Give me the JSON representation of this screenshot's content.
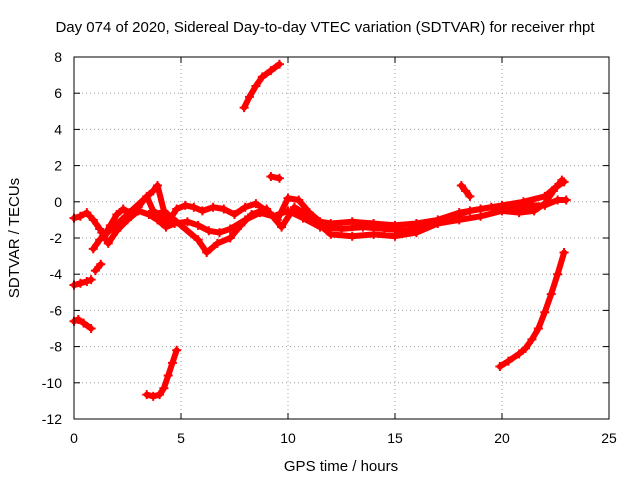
{
  "chart_data": {
    "type": "scatter",
    "title": "Day 074 of 2020, Sidereal Day-to-day VTEC variation (SDTVAR) for receiver rhpt",
    "xlabel": "GPS time / hours",
    "ylabel": "SDTVAR / TECUs",
    "xlim": [
      0,
      25
    ],
    "ylim": [
      -12,
      8
    ],
    "xticks": [
      "0",
      "5",
      "10",
      "15",
      "20",
      "25"
    ],
    "yticks": [
      "-12",
      "-10",
      "-8",
      "-6",
      "-4",
      "-2",
      "0",
      "2",
      "4",
      "6",
      "8"
    ],
    "grid": true,
    "marker": "plus",
    "color": "#ff0000",
    "series": [
      {
        "name": "trace-main-a",
        "points": [
          [
            0,
            -0.9
          ],
          [
            0.3,
            -0.8
          ],
          [
            0.6,
            -0.6
          ],
          [
            0.9,
            -1.0
          ],
          [
            1.2,
            -1.5
          ],
          [
            1.4,
            -1.9
          ],
          [
            1.7,
            -1.3
          ],
          [
            2.0,
            -0.7
          ],
          [
            2.3,
            -0.4
          ],
          [
            2.6,
            -0.6
          ],
          [
            3.0,
            -0.3
          ],
          [
            3.4,
            0.3
          ],
          [
            3.7,
            -0.5
          ],
          [
            4.0,
            -0.7
          ],
          [
            4.4,
            -1.1
          ],
          [
            4.8,
            -0.4
          ],
          [
            5.2,
            -0.2
          ],
          [
            5.6,
            -0.3
          ],
          [
            6.0,
            -0.5
          ],
          [
            6.5,
            -0.3
          ],
          [
            7.0,
            -0.4
          ],
          [
            7.5,
            -0.7
          ],
          [
            8.0,
            -0.3
          ],
          [
            8.5,
            -0.1
          ],
          [
            9.0,
            -0.5
          ],
          [
            9.5,
            -1.0
          ],
          [
            10.0,
            0.2
          ],
          [
            10.5,
            0.1
          ],
          [
            11.0,
            -0.6
          ],
          [
            11.5,
            -1.1
          ],
          [
            12.0,
            -1.2
          ],
          [
            13.0,
            -1.1
          ],
          [
            14.0,
            -1.2
          ],
          [
            15.0,
            -1.3
          ],
          [
            16.0,
            -1.2
          ],
          [
            17.0,
            -1.0
          ],
          [
            18.0,
            -0.6
          ],
          [
            19.0,
            -0.4
          ],
          [
            20.0,
            -0.2
          ],
          [
            21.0,
            0.0
          ],
          [
            22.0,
            0.3
          ],
          [
            22.5,
            0.8
          ],
          [
            22.9,
            1.1
          ]
        ]
      },
      {
        "name": "trace-main-b",
        "points": [
          [
            1.3,
            -1.7
          ],
          [
            1.6,
            -2.3
          ],
          [
            2.0,
            -1.6
          ],
          [
            2.5,
            -1.0
          ],
          [
            3.0,
            -0.5
          ],
          [
            3.5,
            -0.7
          ],
          [
            3.9,
            -1.0
          ],
          [
            4.3,
            -1.4
          ],
          [
            4.7,
            -1.2
          ],
          [
            5.3,
            -1.1
          ],
          [
            5.8,
            -1.3
          ],
          [
            6.3,
            -1.6
          ],
          [
            6.8,
            -1.7
          ],
          [
            7.3,
            -1.5
          ],
          [
            8.0,
            -1.0
          ],
          [
            8.7,
            -0.6
          ],
          [
            9.3,
            -0.8
          ],
          [
            10.0,
            -0.5
          ],
          [
            10.7,
            -0.9
          ],
          [
            11.5,
            -1.4
          ],
          [
            12.5,
            -1.5
          ],
          [
            13.5,
            -1.4
          ],
          [
            14.5,
            -1.5
          ],
          [
            15.5,
            -1.6
          ],
          [
            16.5,
            -1.3
          ],
          [
            17.5,
            -0.9
          ],
          [
            18.5,
            -0.5
          ],
          [
            19.5,
            -0.3
          ],
          [
            20.5,
            -0.4
          ],
          [
            21.3,
            -0.2
          ],
          [
            22.0,
            -0.2
          ],
          [
            22.6,
            0.1
          ],
          [
            23.0,
            0.1
          ]
        ]
      },
      {
        "name": "trace-main-c",
        "points": [
          [
            0.9,
            -2.6
          ],
          [
            1.2,
            -2.1
          ],
          [
            3.7,
            0.6
          ],
          [
            3.9,
            0.9
          ],
          [
            4.2,
            -0.5
          ],
          [
            5.8,
            -2.1
          ],
          [
            6.2,
            -2.8
          ],
          [
            6.7,
            -2.3
          ],
          [
            7.3,
            -2.0
          ],
          [
            7.8,
            -1.3
          ],
          [
            8.3,
            -0.7
          ],
          [
            9.0,
            -0.4
          ],
          [
            9.7,
            -1.4
          ],
          [
            10.3,
            -0.3
          ],
          [
            11.0,
            -0.8
          ],
          [
            12.0,
            -1.8
          ],
          [
            13.0,
            -1.9
          ],
          [
            14.0,
            -1.8
          ],
          [
            15.0,
            -1.9
          ],
          [
            16.0,
            -1.7
          ],
          [
            17.0,
            -1.2
          ],
          [
            18.0,
            -1.0
          ],
          [
            19.0,
            -0.8
          ],
          [
            20.0,
            -0.5
          ],
          [
            20.8,
            -0.6
          ],
          [
            21.5,
            -0.5
          ],
          [
            22.0,
            -0.1
          ],
          [
            22.4,
            0.6
          ],
          [
            22.8,
            1.2
          ]
        ]
      },
      {
        "name": "trace-short-1",
        "points": [
          [
            0.0,
            -4.6
          ],
          [
            0.3,
            -4.5
          ],
          [
            0.6,
            -4.4
          ],
          [
            0.8,
            -4.3
          ]
        ]
      },
      {
        "name": "trace-short-2",
        "points": [
          [
            0.0,
            -6.6
          ],
          [
            0.2,
            -6.5
          ],
          [
            0.45,
            -6.7
          ],
          [
            0.8,
            -7.0
          ]
        ]
      },
      {
        "name": "trace-short-3",
        "points": [
          [
            1.0,
            -3.8
          ],
          [
            1.25,
            -3.45
          ]
        ]
      },
      {
        "name": "trace-short-4",
        "points": [
          [
            3.4,
            -10.65
          ],
          [
            3.7,
            -10.75
          ],
          [
            4.0,
            -10.65
          ],
          [
            4.2,
            -10.3
          ],
          [
            4.4,
            -9.6
          ],
          [
            4.6,
            -8.9
          ],
          [
            4.8,
            -8.2
          ]
        ]
      },
      {
        "name": "trace-short-5",
        "points": [
          [
            7.95,
            5.2
          ],
          [
            8.2,
            5.8
          ],
          [
            8.5,
            6.4
          ],
          [
            8.8,
            6.9
          ],
          [
            9.2,
            7.25
          ],
          [
            9.6,
            7.6
          ]
        ]
      },
      {
        "name": "trace-short-6",
        "points": [
          [
            9.2,
            1.4
          ],
          [
            9.6,
            1.3
          ]
        ]
      },
      {
        "name": "trace-short-7",
        "points": [
          [
            18.1,
            0.9
          ],
          [
            18.3,
            0.6
          ],
          [
            18.5,
            0.3
          ]
        ]
      },
      {
        "name": "trace-short-8",
        "points": [
          [
            19.9,
            -9.1
          ],
          [
            20.3,
            -8.8
          ],
          [
            20.8,
            -8.4
          ],
          [
            21.1,
            -8.1
          ],
          [
            21.4,
            -7.6
          ],
          [
            21.7,
            -7.0
          ],
          [
            22.0,
            -6.1
          ],
          [
            22.3,
            -5.1
          ],
          [
            22.6,
            -4.0
          ],
          [
            22.9,
            -2.8
          ]
        ]
      }
    ]
  }
}
